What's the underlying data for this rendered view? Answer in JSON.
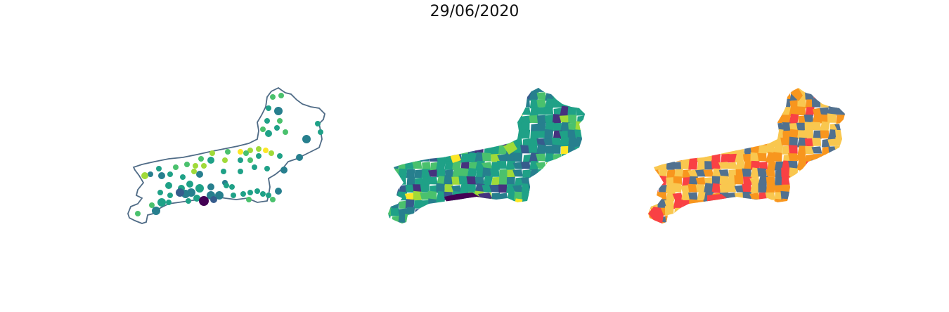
{
  "title": "29/06/2020",
  "colors": {
    "outline": "#4f6b86",
    "viridis": [
      "#440154",
      "#46327e",
      "#365c8d",
      "#277f8e",
      "#1fa187",
      "#4ac16d",
      "#a0da39",
      "#fde725"
    ],
    "categories": [
      "#52718f",
      "#f94144",
      "#f8961e",
      "#f9c74f"
    ]
  },
  "maps": [
    {
      "name": "points-map"
    },
    {
      "name": "choropleth-map"
    },
    {
      "name": "category-map"
    }
  ]
}
